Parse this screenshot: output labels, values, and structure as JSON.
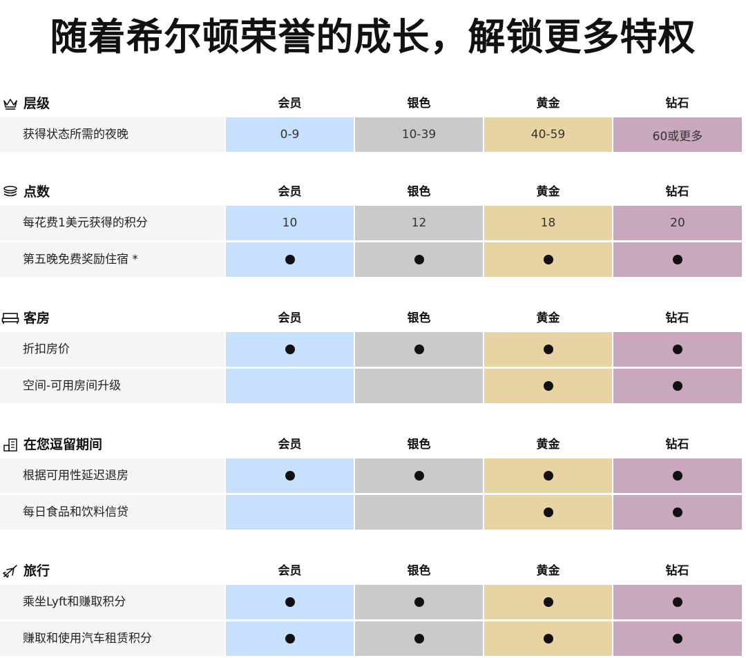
{
  "title": "随着希尔顿荣誉的成长，解锁更多特权",
  "colors": {
    "member": "#c7e0fb",
    "silver": "#cacaca",
    "gold": "#e8d3a3",
    "diamond": "#c9a8bd",
    "label_bg": "#f5f5f5"
  },
  "tier_headers": [
    "会员",
    "银色",
    "黄金",
    "钻石"
  ],
  "sections": [
    {
      "title": "层级",
      "icon": "crown-icon",
      "rows": [
        {
          "label": "获得状态所需的夜晚",
          "values": [
            "0-9",
            "10-39",
            "40-59",
            "60或更多"
          ]
        }
      ]
    },
    {
      "title": "点数",
      "icon": "coins-icon",
      "rows": [
        {
          "label": "每花费1美元获得的积分",
          "values": [
            "10",
            "12",
            "18",
            "20"
          ]
        },
        {
          "label": "第五晚免费奖励住宿 *",
          "values": [
            true,
            true,
            true,
            true
          ]
        }
      ]
    },
    {
      "title": "客房",
      "icon": "bed-icon",
      "rows": [
        {
          "label": "折扣房价",
          "values": [
            true,
            true,
            true,
            true
          ]
        },
        {
          "label": "空间-可用房间升级",
          "values": [
            false,
            false,
            true,
            true
          ]
        }
      ]
    },
    {
      "title": "在您逗留期间",
      "icon": "hotel-icon",
      "rows": [
        {
          "label": "根据可用性延迟退房",
          "values": [
            true,
            true,
            true,
            true
          ]
        },
        {
          "label": "每日食品和饮料信贷",
          "values": [
            false,
            false,
            true,
            true
          ]
        }
      ]
    },
    {
      "title": "旅行",
      "icon": "plane-icon",
      "rows": [
        {
          "label": "乘坐Lyft和赚取积分",
          "values": [
            true,
            true,
            true,
            true
          ]
        },
        {
          "label": "赚取和使用汽车租赁积分",
          "values": [
            true,
            true,
            true,
            true
          ]
        }
      ]
    }
  ]
}
